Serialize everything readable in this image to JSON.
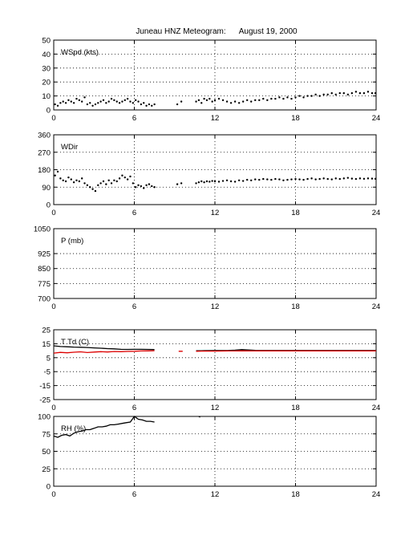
{
  "title": "Juneau HNZ Meteogram:      August 19, 2000",
  "chart_data": [
    {
      "type": "scatter",
      "label": "WSpd (kts)",
      "xlim": [
        0,
        24
      ],
      "ylim": [
        0,
        50
      ],
      "xticks": [
        0,
        6,
        12,
        18,
        24
      ],
      "yticks": [
        0,
        10,
        20,
        30,
        40,
        50
      ],
      "grid": true,
      "series": [
        {
          "color": "#000000",
          "x": [
            0.1,
            0.3,
            0.5,
            0.7,
            0.9,
            1.1,
            1.3,
            1.5,
            1.7,
            1.9,
            2.1,
            2.3,
            2.5,
            2.7,
            2.9,
            3.1,
            3.3,
            3.5,
            3.7,
            3.9,
            4.1,
            4.3,
            4.5,
            4.7,
            4.9,
            5.1,
            5.3,
            5.5,
            5.7,
            5.9,
            6.1,
            6.3,
            6.5,
            6.7,
            6.9,
            7.1,
            7.3,
            7.5,
            9.2,
            9.5,
            10.6,
            10.8,
            11.0,
            11.2,
            11.4,
            11.6,
            11.8,
            12.0,
            12.3,
            12.6,
            12.9,
            13.2,
            13.5,
            13.8,
            14.1,
            14.4,
            14.7,
            15.0,
            15.3,
            15.6,
            15.9,
            16.2,
            16.5,
            16.8,
            17.1,
            17.4,
            17.7,
            18.0,
            18.3,
            18.6,
            18.9,
            19.2,
            19.5,
            19.8,
            20.1,
            20.4,
            20.7,
            21.0,
            21.3,
            21.6,
            21.9,
            22.2,
            22.5,
            22.8,
            23.1,
            23.4,
            23.7,
            23.95
          ],
          "y": [
            4,
            3,
            5,
            6,
            5,
            7,
            6,
            5,
            8,
            7,
            6,
            9,
            4,
            5,
            3,
            4,
            5,
            6,
            7,
            5,
            6,
            8,
            7,
            6,
            5,
            6,
            7,
            8,
            6,
            5,
            7,
            6,
            4,
            5,
            3,
            4,
            3,
            4,
            4,
            6,
            6,
            7,
            5,
            8,
            7,
            8,
            6,
            7,
            8,
            7,
            6,
            5,
            6,
            5,
            6,
            7,
            6,
            7,
            7,
            8,
            7,
            8,
            8,
            9,
            8,
            9,
            8,
            9,
            10,
            9,
            10,
            10,
            11,
            10,
            11,
            11,
            12,
            11,
            12,
            12,
            11,
            12,
            13,
            12,
            12,
            13,
            12,
            12
          ]
        }
      ]
    },
    {
      "type": "scatter",
      "label": "WDir",
      "xlim": [
        0,
        24
      ],
      "ylim": [
        0,
        360
      ],
      "xticks": [
        0,
        6,
        12,
        18,
        24
      ],
      "yticks": [
        0,
        90,
        180,
        270,
        360
      ],
      "grid": true,
      "series": [
        {
          "color": "#000000",
          "x": [
            0.1,
            0.3,
            0.5,
            0.7,
            0.9,
            1.1,
            1.3,
            1.5,
            1.7,
            1.9,
            2.1,
            2.3,
            2.5,
            2.7,
            2.9,
            3.1,
            3.3,
            3.5,
            3.7,
            3.9,
            4.1,
            4.3,
            4.5,
            4.7,
            4.9,
            5.1,
            5.3,
            5.5,
            5.7,
            5.9,
            6.1,
            6.3,
            6.5,
            6.7,
            6.9,
            7.1,
            7.3,
            7.5,
            9.2,
            9.5,
            10.6,
            10.8,
            11.0,
            11.2,
            11.4,
            11.6,
            11.8,
            12.0,
            12.3,
            12.6,
            12.9,
            13.2,
            13.5,
            13.8,
            14.1,
            14.4,
            14.7,
            15.0,
            15.3,
            15.6,
            15.9,
            16.2,
            16.5,
            16.8,
            17.1,
            17.4,
            17.7,
            18.0,
            18.3,
            18.6,
            18.9,
            19.2,
            19.5,
            19.8,
            20.1,
            20.4,
            20.7,
            21.0,
            21.3,
            21.6,
            21.9,
            22.2,
            22.5,
            22.8,
            23.1,
            23.4,
            23.7,
            23.95
          ],
          "y": [
            150,
            170,
            135,
            125,
            120,
            140,
            130,
            115,
            125,
            120,
            135,
            110,
            100,
            90,
            80,
            70,
            100,
            110,
            120,
            105,
            125,
            110,
            125,
            120,
            135,
            150,
            140,
            130,
            145,
            110,
            90,
            100,
            95,
            85,
            100,
            105,
            95,
            90,
            105,
            110,
            110,
            115,
            120,
            115,
            120,
            118,
            122,
            120,
            118,
            122,
            125,
            120,
            118,
            125,
            122,
            128,
            125,
            130,
            128,
            132,
            130,
            128,
            132,
            130,
            125,
            128,
            130,
            132,
            130,
            128,
            132,
            135,
            130,
            132,
            135,
            132,
            130,
            135,
            132,
            135,
            138,
            134,
            132,
            135,
            133,
            135,
            134,
            133
          ]
        }
      ]
    },
    {
      "type": "line",
      "label": "P (mb)",
      "xlim": [
        0,
        24
      ],
      "ylim": [
        700,
        1050
      ],
      "xticks": [
        0,
        6,
        12,
        18,
        24
      ],
      "yticks": [
        700,
        775,
        850,
        925,
        1050
      ],
      "grid": true,
      "series": []
    },
    {
      "type": "line",
      "label": "T Td (C)",
      "xlim": [
        0,
        24
      ],
      "ylim": [
        -25,
        25
      ],
      "xticks": [
        0,
        6,
        12,
        18,
        24
      ],
      "yticks": [
        -25,
        -15,
        -5,
        5,
        15,
        25
      ],
      "grid": true,
      "series": [
        {
          "color": "#000000",
          "x": [
            0,
            0.5,
            1,
            1.5,
            2,
            2.5,
            3,
            3.5,
            4,
            4.5,
            5,
            5.5,
            6,
            6.5,
            7,
            7.5,
            null,
            10.6,
            11,
            12,
            13,
            13.5,
            14,
            15,
            16,
            17,
            18,
            19,
            20,
            21,
            22,
            23,
            24
          ],
          "y": [
            13.5,
            13.0,
            12.8,
            12.6,
            12.5,
            12.3,
            12.0,
            11.8,
            11.5,
            11.3,
            11.0,
            10.9,
            11.0,
            11.0,
            10.9,
            10.8,
            null,
            10.0,
            10.0,
            10.1,
            10.2,
            10.4,
            10.8,
            10.3,
            10.2,
            10.2,
            10.2,
            10.2,
            10.2,
            10.2,
            10.2,
            10.2,
            10.2
          ]
        },
        {
          "color": "#dd0000",
          "x": [
            0,
            0.5,
            1,
            1.5,
            2,
            2.5,
            3,
            3.5,
            4,
            4.5,
            5,
            5.5,
            6,
            6.5,
            7,
            7.5,
            null,
            9.3,
            9.6,
            null,
            10.6,
            11,
            12,
            13,
            14,
            15,
            16,
            17,
            18,
            19,
            20,
            21,
            22,
            23,
            24
          ],
          "y": [
            8.3,
            8.8,
            8.5,
            8.9,
            9.2,
            8.7,
            9.0,
            9.3,
            9.1,
            9.4,
            9.3,
            9.5,
            9.6,
            9.8,
            9.9,
            10.0,
            null,
            9.6,
            9.6,
            null,
            9.6,
            9.7,
            9.7,
            9.8,
            9.9,
            9.9,
            9.9,
            9.9,
            9.9,
            9.9,
            9.9,
            9.9,
            9.9,
            9.9,
            9.9
          ]
        }
      ]
    },
    {
      "type": "line",
      "label": "RH (%)",
      "xlim": [
        0,
        24
      ],
      "ylim": [
        0,
        100
      ],
      "xticks": [
        0,
        6,
        12,
        18,
        24
      ],
      "yticks": [
        0,
        25,
        50,
        75,
        100
      ],
      "grid": true,
      "series": [
        {
          "color": "#000000",
          "x": [
            0,
            0.3,
            0.6,
            0.9,
            1.2,
            1.5,
            1.8,
            2.1,
            2.4,
            2.7,
            3.0,
            3.3,
            3.6,
            3.9,
            4.2,
            4.5,
            4.8,
            5.1,
            5.4,
            5.7,
            6.0,
            6.3,
            6.6,
            6.9,
            7.2,
            7.5,
            null,
            10.8,
            10.9
          ],
          "y": [
            72,
            70,
            73,
            74,
            72,
            76,
            78,
            79,
            81,
            81,
            83,
            85,
            85,
            86,
            88,
            88,
            89,
            90,
            91,
            92,
            100,
            96,
            95,
            93,
            93,
            92,
            null,
            100,
            99
          ]
        }
      ]
    }
  ]
}
